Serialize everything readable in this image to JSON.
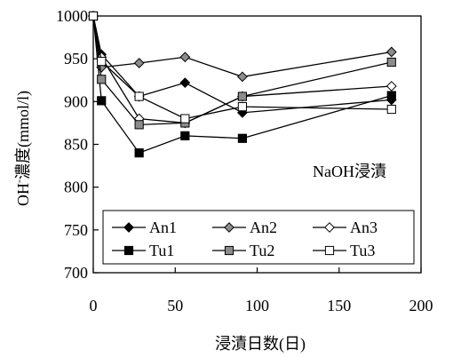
{
  "chart_data": {
    "type": "line",
    "annotation": "NaOH浸漬",
    "xlabel": "浸漬日数(日)",
    "ylabel_prefix": "OH",
    "ylabel_sup": "-",
    "ylabel_suffix": "濃度(mmol/l)",
    "xlim": [
      0,
      200
    ],
    "ylim": [
      700,
      1000
    ],
    "xticks": [
      "0",
      "50",
      "100",
      "150",
      "200"
    ],
    "yticks": [
      "700",
      "750",
      "800",
      "850",
      "900",
      "950",
      "1000"
    ],
    "grid": false,
    "legend_position": "bottom-left",
    "series": [
      {
        "name": "An1",
        "marker": "diamond",
        "fill": "#000000",
        "x": [
          0,
          5,
          28,
          56,
          91,
          182
        ],
        "y": [
          1000,
          955,
          906,
          922,
          887,
          902
        ]
      },
      {
        "name": "An2",
        "marker": "diamond",
        "fill": "#8c8c8c",
        "x": [
          0,
          5,
          28,
          56,
          91,
          182
        ],
        "y": [
          1000,
          940,
          945,
          952,
          929,
          958
        ]
      },
      {
        "name": "An3",
        "marker": "diamond",
        "fill": "#ffffff",
        "x": [
          0,
          5,
          28,
          56,
          91,
          182
        ],
        "y": [
          1000,
          952,
          880,
          875,
          906,
          918
        ]
      },
      {
        "name": "Tu1",
        "marker": "square",
        "fill": "#000000",
        "x": [
          0,
          5,
          28,
          56,
          91,
          182
        ],
        "y": [
          1000,
          901,
          840,
          860,
          857,
          907
        ]
      },
      {
        "name": "Tu2",
        "marker": "square",
        "fill": "#8c8c8c",
        "x": [
          0,
          5,
          28,
          56,
          91,
          182
        ],
        "y": [
          1000,
          926,
          873,
          875,
          906,
          946
        ]
      },
      {
        "name": "Tu3",
        "marker": "square",
        "fill": "#ffffff",
        "x": [
          0,
          5,
          28,
          56,
          91,
          182
        ],
        "y": [
          1000,
          947,
          906,
          880,
          894,
          891
        ]
      }
    ]
  }
}
